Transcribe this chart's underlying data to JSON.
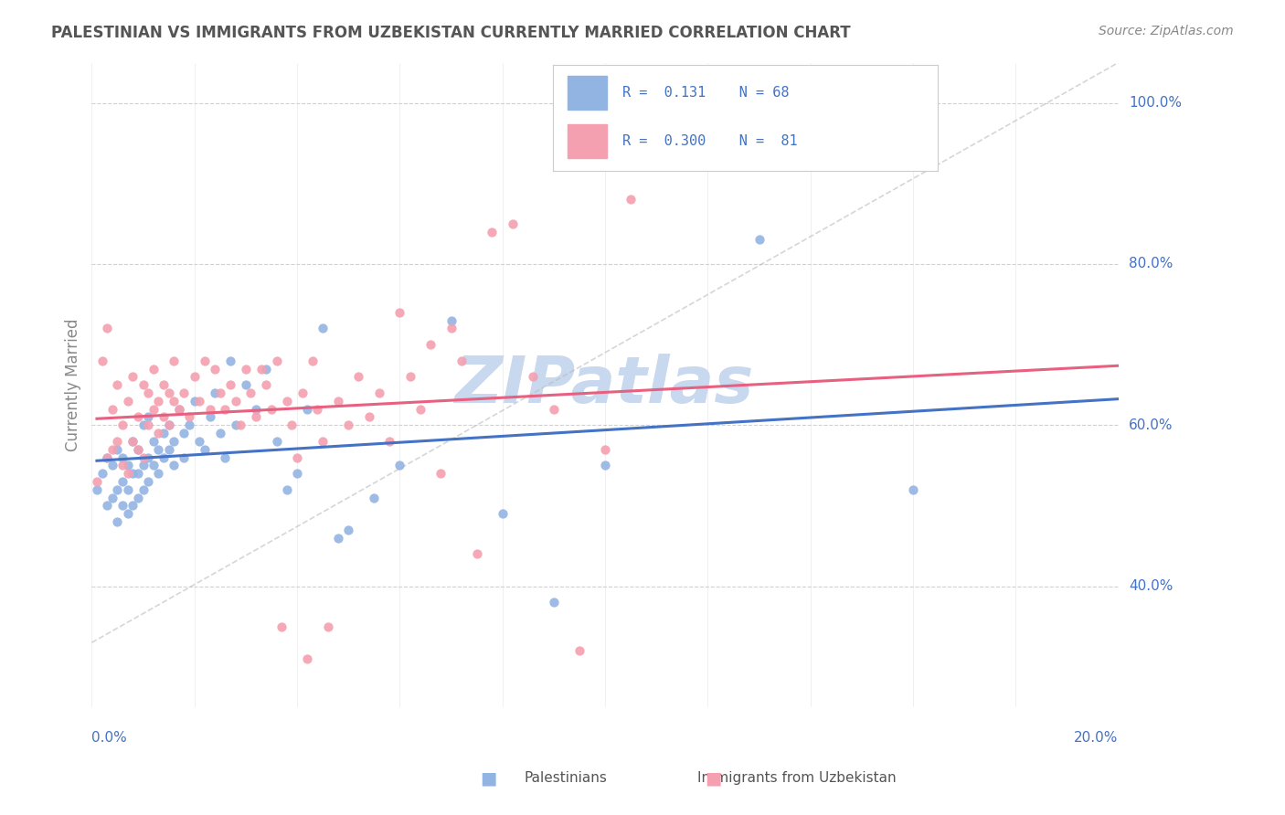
{
  "title": "PALESTINIAN VS IMMIGRANTS FROM UZBEKISTAN CURRENTLY MARRIED CORRELATION CHART",
  "source": "Source: ZipAtlas.com",
  "ylabel": "Currently Married",
  "xmin": 0.0,
  "xmax": 0.2,
  "ymin": 0.25,
  "ymax": 1.05,
  "r_palestinian": 0.131,
  "n_palestinian": 68,
  "r_uzbekistan": 0.3,
  "n_uzbekistan": 81,
  "palestinian_color": "#92b4e3",
  "uzbekistan_color": "#f4a0b0",
  "trend_palestinian_color": "#4472c4",
  "trend_uzbekistan_color": "#e86080",
  "watermark_color": "#c8d8ee",
  "title_color": "#555555",
  "axis_label_color": "#4472c4",
  "legend_text_color": "#4472c4",
  "grid_color": "#cccccc",
  "background_color": "#ffffff",
  "palestinian_points_x": [
    0.001,
    0.002,
    0.003,
    0.003,
    0.004,
    0.004,
    0.005,
    0.005,
    0.005,
    0.006,
    0.006,
    0.006,
    0.007,
    0.007,
    0.007,
    0.008,
    0.008,
    0.008,
    0.009,
    0.009,
    0.009,
    0.01,
    0.01,
    0.01,
    0.011,
    0.011,
    0.011,
    0.012,
    0.012,
    0.013,
    0.013,
    0.014,
    0.014,
    0.015,
    0.015,
    0.016,
    0.016,
    0.017,
    0.018,
    0.018,
    0.019,
    0.02,
    0.021,
    0.022,
    0.023,
    0.024,
    0.025,
    0.026,
    0.027,
    0.028,
    0.03,
    0.032,
    0.034,
    0.036,
    0.038,
    0.04,
    0.042,
    0.045,
    0.048,
    0.05,
    0.055,
    0.06,
    0.07,
    0.08,
    0.09,
    0.1,
    0.13,
    0.16
  ],
  "palestinian_points_y": [
    0.52,
    0.54,
    0.5,
    0.56,
    0.51,
    0.55,
    0.48,
    0.52,
    0.57,
    0.5,
    0.53,
    0.56,
    0.49,
    0.52,
    0.55,
    0.5,
    0.54,
    0.58,
    0.51,
    0.54,
    0.57,
    0.52,
    0.55,
    0.6,
    0.53,
    0.56,
    0.61,
    0.55,
    0.58,
    0.54,
    0.57,
    0.56,
    0.59,
    0.57,
    0.6,
    0.55,
    0.58,
    0.62,
    0.56,
    0.59,
    0.6,
    0.63,
    0.58,
    0.57,
    0.61,
    0.64,
    0.59,
    0.56,
    0.68,
    0.6,
    0.65,
    0.62,
    0.67,
    0.58,
    0.52,
    0.54,
    0.62,
    0.72,
    0.46,
    0.47,
    0.51,
    0.55,
    0.73,
    0.49,
    0.38,
    0.55,
    0.83,
    0.52
  ],
  "uzbekistan_points_x": [
    0.001,
    0.002,
    0.003,
    0.003,
    0.004,
    0.004,
    0.005,
    0.005,
    0.006,
    0.006,
    0.007,
    0.007,
    0.008,
    0.008,
    0.009,
    0.009,
    0.01,
    0.01,
    0.011,
    0.011,
    0.012,
    0.012,
    0.013,
    0.013,
    0.014,
    0.014,
    0.015,
    0.015,
    0.016,
    0.016,
    0.017,
    0.018,
    0.019,
    0.02,
    0.021,
    0.022,
    0.023,
    0.024,
    0.025,
    0.026,
    0.027,
    0.028,
    0.029,
    0.03,
    0.031,
    0.032,
    0.033,
    0.034,
    0.035,
    0.036,
    0.037,
    0.038,
    0.039,
    0.04,
    0.041,
    0.042,
    0.043,
    0.044,
    0.045,
    0.046,
    0.048,
    0.05,
    0.052,
    0.054,
    0.056,
    0.058,
    0.06,
    0.062,
    0.064,
    0.066,
    0.068,
    0.07,
    0.072,
    0.075,
    0.078,
    0.082,
    0.086,
    0.09,
    0.095,
    0.1,
    0.105
  ],
  "uzbekistan_points_y": [
    0.53,
    0.68,
    0.56,
    0.72,
    0.57,
    0.62,
    0.58,
    0.65,
    0.55,
    0.6,
    0.54,
    0.63,
    0.58,
    0.66,
    0.57,
    0.61,
    0.56,
    0.65,
    0.6,
    0.64,
    0.62,
    0.67,
    0.59,
    0.63,
    0.61,
    0.65,
    0.6,
    0.64,
    0.63,
    0.68,
    0.62,
    0.64,
    0.61,
    0.66,
    0.63,
    0.68,
    0.62,
    0.67,
    0.64,
    0.62,
    0.65,
    0.63,
    0.6,
    0.67,
    0.64,
    0.61,
    0.67,
    0.65,
    0.62,
    0.68,
    0.35,
    0.63,
    0.6,
    0.56,
    0.64,
    0.31,
    0.68,
    0.62,
    0.58,
    0.35,
    0.63,
    0.6,
    0.66,
    0.61,
    0.64,
    0.58,
    0.74,
    0.66,
    0.62,
    0.7,
    0.54,
    0.72,
    0.68,
    0.44,
    0.84,
    0.85,
    0.66,
    0.62,
    0.32,
    0.57,
    0.88
  ]
}
